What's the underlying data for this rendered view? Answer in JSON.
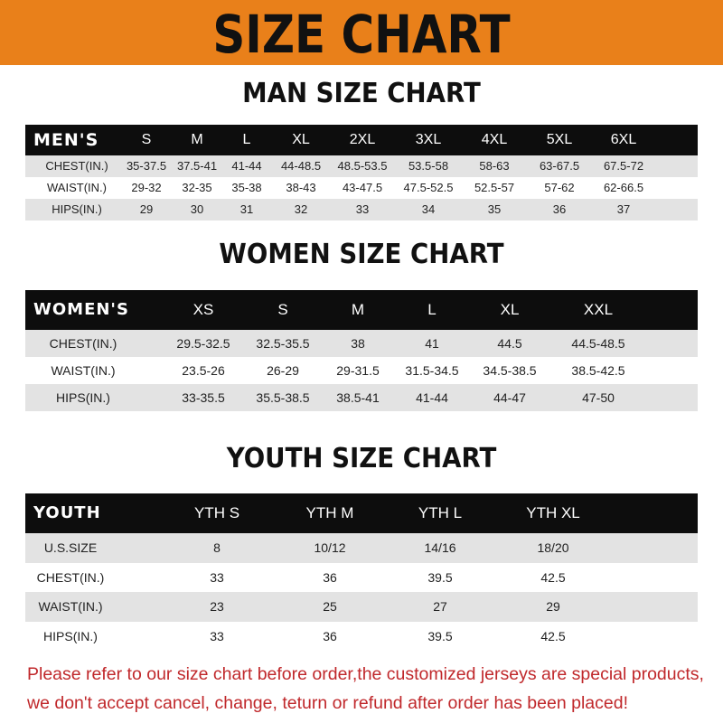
{
  "banner": {
    "title": "SIZE CHART",
    "color": "#e9801a"
  },
  "men": {
    "title": "MAN SIZE CHART",
    "header": [
      "MEN'S",
      "S",
      "M",
      "L",
      "XL",
      "2XL",
      "3XL",
      "4XL",
      "5XL",
      "6XL"
    ],
    "rows": [
      [
        "CHEST(IN.)",
        "35-37.5",
        "37.5-41",
        "41-44",
        "44-48.5",
        "48.5-53.5",
        "53.5-58",
        "58-63",
        "63-67.5",
        "67.5-72"
      ],
      [
        "WAIST(IN.)",
        "29-32",
        "32-35",
        "35-38",
        "38-43",
        "43-47.5",
        "47.5-52.5",
        "52.5-57",
        "57-62",
        "62-66.5"
      ],
      [
        "HIPS(IN.)",
        "29",
        "30",
        "31",
        "32",
        "33",
        "34",
        "35",
        "36",
        "37"
      ]
    ]
  },
  "women": {
    "title": "WOMEN SIZE CHART",
    "header": [
      "WOMEN'S",
      "XS",
      "S",
      "M",
      "L",
      "XL",
      "XXL"
    ],
    "rows": [
      [
        "CHEST(IN.)",
        "29.5-32.5",
        "32.5-35.5",
        "38",
        "41",
        "44.5",
        "44.5-48.5"
      ],
      [
        "WAIST(IN.)",
        "23.5-26",
        "26-29",
        "29-31.5",
        "31.5-34.5",
        "34.5-38.5",
        "38.5-42.5"
      ],
      [
        "HIPS(IN.)",
        "33-35.5",
        "35.5-38.5",
        "38.5-41",
        "41-44",
        "44-47",
        "47-50"
      ]
    ]
  },
  "youth": {
    "title": "YOUTH SIZE CHART",
    "header": [
      "YOUTH",
      "YTH S",
      "YTH M",
      "YTH L",
      "YTH XL"
    ],
    "rows": [
      [
        "U.S.SIZE",
        "8",
        "10/12",
        "14/16",
        "18/20"
      ],
      [
        "CHEST(IN.)",
        "33",
        "36",
        "39.5",
        "42.5"
      ],
      [
        "WAIST(IN.)",
        "23",
        "25",
        "27",
        "29"
      ],
      [
        "HIPS(IN.)",
        "33",
        "36",
        "39.5",
        "42.5"
      ]
    ]
  },
  "note": {
    "line1": "Please refer to our size chart before order,the customized jerseys are special products,",
    "line2": "we don't accept cancel, change, teturn or refund after order has been placed!",
    "color": "#c0282b"
  }
}
